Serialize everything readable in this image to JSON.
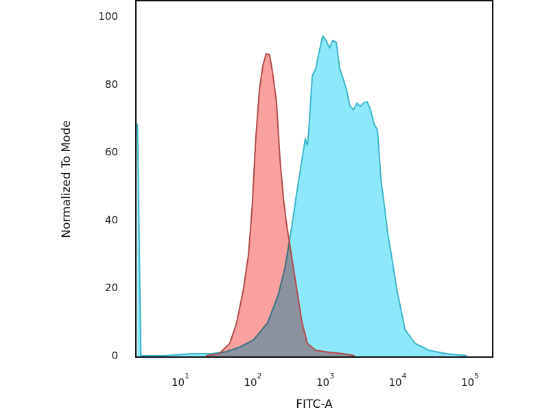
{
  "chart_data": {
    "type": "area",
    "title": "",
    "xlabel": "FITC-A",
    "ylabel": "Normalized To Mode",
    "xscale": "log",
    "xlim": [
      2.5,
      210000
    ],
    "ylim": [
      0,
      105
    ],
    "grid": false,
    "legend": "none",
    "yticks": [
      "0",
      "20",
      "40",
      "60",
      "80",
      "100"
    ],
    "xticks": [
      {
        "base": "10",
        "exp": "1"
      },
      {
        "base": "10",
        "exp": "2"
      },
      {
        "base": "10",
        "exp": "3"
      },
      {
        "base": "10",
        "exp": "4"
      },
      {
        "base": "10",
        "exp": "5"
      }
    ],
    "series": [
      {
        "fill": "#8ee8fb",
        "stroke": "#3ab6cc",
        "x": [
          2.6,
          2.9,
          6.2,
          15,
          28,
          44,
          68,
          105,
          163,
          228,
          283,
          352,
          411,
          489,
          542,
          580,
          605,
          676,
          755,
          843,
          940,
          1050,
          1170,
          1300,
          1450,
          1620,
          1810,
          2000,
          2250,
          2510,
          2800,
          3100,
          3470,
          3870,
          4320,
          4820,
          5380,
          6000,
          6700,
          7470,
          8330,
          9900,
          12900,
          17800,
          27600,
          47600,
          91900
        ],
        "y": [
          68.4,
          0,
          0,
          0.6,
          0.6,
          1.2,
          2.6,
          4.7,
          9.7,
          17.8,
          25.9,
          38,
          48,
          58,
          64,
          62,
          66.4,
          82.6,
          84.6,
          89.7,
          94.3,
          93,
          90.7,
          93,
          92.3,
          84.6,
          81.6,
          78.5,
          73.5,
          72.5,
          74.5,
          73.5,
          74.5,
          74.9,
          72.5,
          68.4,
          66.4,
          52,
          44,
          36,
          30,
          19.8,
          7.7,
          3.6,
          1.6,
          0.6,
          0
        ]
      },
      {
        "fill": "#f9a0a0",
        "stroke": "#b24a4a",
        "x": [
          23,
          35,
          49,
          61,
          76,
          89,
          100,
          112,
          126,
          141,
          156,
          174,
          194,
          217,
          242,
          271,
          302,
          352,
          411,
          489,
          580,
          755,
          1170,
          1810,
          2600
        ],
        "y": [
          0,
          0.6,
          3.6,
          9.7,
          19.8,
          30,
          44,
          64,
          78.5,
          85.6,
          89,
          88.7,
          82.6,
          74.5,
          58,
          46,
          38,
          29,
          19.8,
          9.7,
          3.6,
          1.6,
          1,
          0.6,
          0
        ]
      }
    ]
  }
}
